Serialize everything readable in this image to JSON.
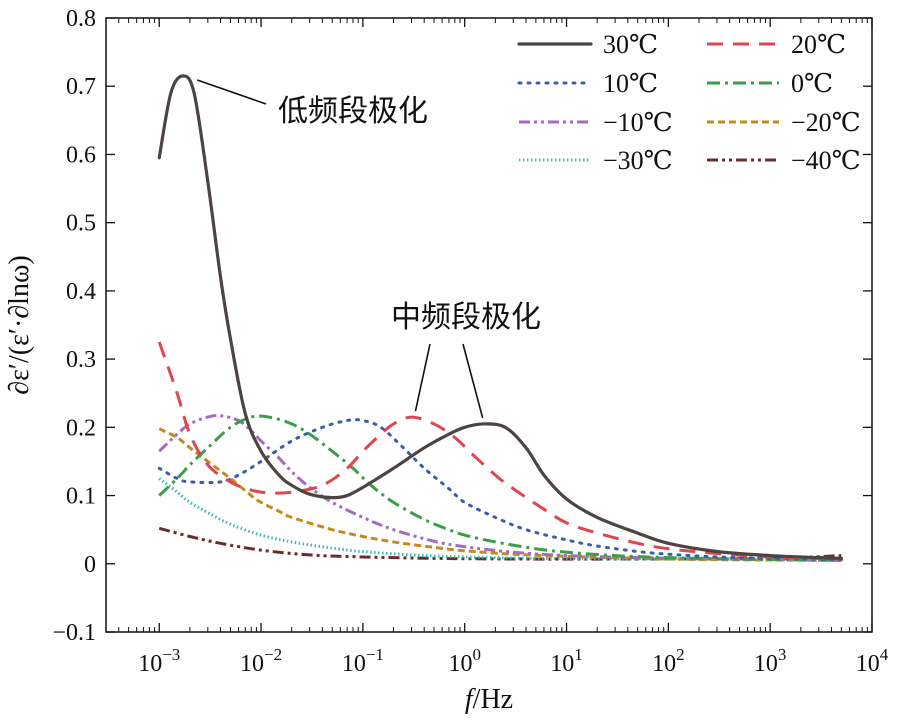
{
  "chart_data": {
    "type": "line",
    "xscale": "log",
    "xlim": [
      0.0003,
      10000
    ],
    "ylim": [
      -0.1,
      0.8
    ],
    "xlabel_italic": "f",
    "xlabel_rest": "/Hz",
    "ylabel": "∂ε′/(ε′·∂lnω)",
    "x_ticks": [
      {
        "value": 0.001,
        "base": "10",
        "exp": "−3"
      },
      {
        "value": 0.01,
        "base": "10",
        "exp": "−2"
      },
      {
        "value": 0.1,
        "base": "10",
        "exp": "−1"
      },
      {
        "value": 1,
        "base": "10",
        "exp": "0"
      },
      {
        "value": 10,
        "base": "10",
        "exp": "1"
      },
      {
        "value": 100,
        "base": "10",
        "exp": "2"
      },
      {
        "value": 1000,
        "base": "10",
        "exp": "3"
      },
      {
        "value": 10000,
        "base": "10",
        "exp": "4"
      }
    ],
    "y_ticks": [
      {
        "value": -0.1,
        "label": "−0.1"
      },
      {
        "value": 0,
        "label": "0"
      },
      {
        "value": 0.1,
        "label": "0.1"
      },
      {
        "value": 0.2,
        "label": "0.2"
      },
      {
        "value": 0.3,
        "label": "0.3"
      },
      {
        "value": 0.4,
        "label": "0.4"
      },
      {
        "value": 0.5,
        "label": "0.5"
      },
      {
        "value": 0.6,
        "label": "0.6"
      },
      {
        "value": 0.7,
        "label": "0.7"
      },
      {
        "value": 0.8,
        "label": "0.8"
      }
    ],
    "legend_position": "top-right",
    "series": [
      {
        "name": "30℃",
        "color": "#4b4441",
        "dash": "solid",
        "points": [
          [
            0.001,
            0.595
          ],
          [
            0.0013,
            0.69
          ],
          [
            0.0017,
            0.715
          ],
          [
            0.0022,
            0.69
          ],
          [
            0.003,
            0.56
          ],
          [
            0.004,
            0.42
          ],
          [
            0.005,
            0.33
          ],
          [
            0.007,
            0.22
          ],
          [
            0.01,
            0.165
          ],
          [
            0.015,
            0.13
          ],
          [
            0.02,
            0.115
          ],
          [
            0.03,
            0.102
          ],
          [
            0.05,
            0.097
          ],
          [
            0.07,
            0.1
          ],
          [
            0.1,
            0.112
          ],
          [
            0.2,
            0.14
          ],
          [
            0.4,
            0.17
          ],
          [
            0.7,
            0.19
          ],
          [
            1,
            0.2
          ],
          [
            1.5,
            0.205
          ],
          [
            2.5,
            0.2
          ],
          [
            4,
            0.17
          ],
          [
            6,
            0.13
          ],
          [
            10,
            0.095
          ],
          [
            20,
            0.068
          ],
          [
            50,
            0.045
          ],
          [
            100,
            0.03
          ],
          [
            300,
            0.018
          ],
          [
            1000,
            0.012
          ],
          [
            3000,
            0.009
          ],
          [
            5000,
            0.008
          ]
        ]
      },
      {
        "name": "20℃",
        "color": "#e0464e",
        "dash": "long",
        "points": [
          [
            0.001,
            0.325
          ],
          [
            0.0015,
            0.25
          ],
          [
            0.002,
            0.19
          ],
          [
            0.003,
            0.145
          ],
          [
            0.005,
            0.12
          ],
          [
            0.008,
            0.108
          ],
          [
            0.012,
            0.104
          ],
          [
            0.02,
            0.105
          ],
          [
            0.04,
            0.115
          ],
          [
            0.07,
            0.14
          ],
          [
            0.1,
            0.165
          ],
          [
            0.15,
            0.19
          ],
          [
            0.2,
            0.205
          ],
          [
            0.3,
            0.215
          ],
          [
            0.5,
            0.205
          ],
          [
            0.8,
            0.185
          ],
          [
            1.2,
            0.16
          ],
          [
            2,
            0.13
          ],
          [
            3,
            0.11
          ],
          [
            6,
            0.08
          ],
          [
            10,
            0.06
          ],
          [
            20,
            0.045
          ],
          [
            50,
            0.03
          ],
          [
            100,
            0.022
          ],
          [
            300,
            0.015
          ],
          [
            1000,
            0.01
          ],
          [
            3000,
            0.008
          ],
          [
            5000,
            0.007
          ]
        ]
      },
      {
        "name": "10℃",
        "color": "#3a5ea8",
        "dash": "dot",
        "points": [
          [
            0.001,
            0.14
          ],
          [
            0.0015,
            0.125
          ],
          [
            0.002,
            0.12
          ],
          [
            0.004,
            0.12
          ],
          [
            0.006,
            0.13
          ],
          [
            0.01,
            0.15
          ],
          [
            0.02,
            0.18
          ],
          [
            0.04,
            0.2
          ],
          [
            0.07,
            0.21
          ],
          [
            0.1,
            0.21
          ],
          [
            0.15,
            0.2
          ],
          [
            0.25,
            0.17
          ],
          [
            0.4,
            0.14
          ],
          [
            0.7,
            0.11
          ],
          [
            1,
            0.09
          ],
          [
            2,
            0.068
          ],
          [
            4,
            0.05
          ],
          [
            10,
            0.035
          ],
          [
            20,
            0.026
          ],
          [
            50,
            0.018
          ],
          [
            100,
            0.014
          ],
          [
            300,
            0.01
          ],
          [
            1000,
            0.008
          ],
          [
            5000,
            0.006
          ]
        ]
      },
      {
        "name": "0℃",
        "color": "#3a9e48",
        "dash": "dashdot",
        "points": [
          [
            0.001,
            0.1
          ],
          [
            0.0015,
            0.125
          ],
          [
            0.002,
            0.145
          ],
          [
            0.003,
            0.17
          ],
          [
            0.005,
            0.2
          ],
          [
            0.008,
            0.215
          ],
          [
            0.012,
            0.215
          ],
          [
            0.02,
            0.205
          ],
          [
            0.03,
            0.19
          ],
          [
            0.05,
            0.165
          ],
          [
            0.08,
            0.14
          ],
          [
            0.12,
            0.115
          ],
          [
            0.2,
            0.09
          ],
          [
            0.4,
            0.065
          ],
          [
            0.7,
            0.05
          ],
          [
            1,
            0.042
          ],
          [
            2,
            0.032
          ],
          [
            5,
            0.022
          ],
          [
            10,
            0.017
          ],
          [
            30,
            0.012
          ],
          [
            100,
            0.009
          ],
          [
            500,
            0.007
          ],
          [
            5000,
            0.005
          ]
        ]
      },
      {
        "name": "−10℃",
        "color": "#a56bbf",
        "dash": "dashdotdot",
        "points": [
          [
            0.001,
            0.165
          ],
          [
            0.0015,
            0.19
          ],
          [
            0.002,
            0.205
          ],
          [
            0.003,
            0.215
          ],
          [
            0.004,
            0.217
          ],
          [
            0.006,
            0.21
          ],
          [
            0.008,
            0.195
          ],
          [
            0.01,
            0.18
          ],
          [
            0.015,
            0.155
          ],
          [
            0.02,
            0.135
          ],
          [
            0.03,
            0.112
          ],
          [
            0.05,
            0.09
          ],
          [
            0.1,
            0.068
          ],
          [
            0.2,
            0.05
          ],
          [
            0.5,
            0.033
          ],
          [
            1,
            0.025
          ],
          [
            3,
            0.017
          ],
          [
            10,
            0.012
          ],
          [
            50,
            0.009
          ],
          [
            300,
            0.007
          ],
          [
            5000,
            0.005
          ]
        ]
      },
      {
        "name": "−20℃",
        "color": "#c48a1e",
        "dash": "short",
        "points": [
          [
            0.001,
            0.198
          ],
          [
            0.0015,
            0.185
          ],
          [
            0.002,
            0.17
          ],
          [
            0.003,
            0.15
          ],
          [
            0.005,
            0.125
          ],
          [
            0.008,
            0.1
          ],
          [
            0.01,
            0.09
          ],
          [
            0.015,
            0.077
          ],
          [
            0.02,
            0.068
          ],
          [
            0.05,
            0.05
          ],
          [
            0.1,
            0.04
          ],
          [
            0.2,
            0.032
          ],
          [
            0.5,
            0.024
          ],
          [
            1,
            0.019
          ],
          [
            3,
            0.014
          ],
          [
            10,
            0.011
          ],
          [
            50,
            0.008
          ],
          [
            300,
            0.006
          ],
          [
            5000,
            0.005
          ]
        ]
      },
      {
        "name": "−30℃",
        "color": "#3bb8b0",
        "dash": "fine",
        "points": [
          [
            0.001,
            0.125
          ],
          [
            0.0015,
            0.105
          ],
          [
            0.002,
            0.09
          ],
          [
            0.003,
            0.075
          ],
          [
            0.005,
            0.058
          ],
          [
            0.01,
            0.042
          ],
          [
            0.02,
            0.032
          ],
          [
            0.05,
            0.023
          ],
          [
            0.1,
            0.018
          ],
          [
            0.3,
            0.013
          ],
          [
            1,
            0.01
          ],
          [
            5,
            0.008
          ],
          [
            50,
            0.007
          ],
          [
            5000,
            0.006
          ]
        ]
      },
      {
        "name": "−40℃",
        "color": "#6b2c2c",
        "dash": "dashdotdot",
        "points": [
          [
            0.001,
            0.052
          ],
          [
            0.002,
            0.04
          ],
          [
            0.004,
            0.03
          ],
          [
            0.01,
            0.02
          ],
          [
            0.03,
            0.013
          ],
          [
            0.1,
            0.01
          ],
          [
            0.5,
            0.008
          ],
          [
            3,
            0.007
          ],
          [
            50,
            0.007
          ],
          [
            1000,
            0.008
          ],
          [
            5000,
            0.012
          ]
        ]
      }
    ],
    "annotations": [
      {
        "text": "低频段极化",
        "points_to": [
          [
            0.0018,
            0.715
          ]
        ]
      },
      {
        "text": "中频段极化",
        "points_to": [
          [
            0.3,
            0.215
          ],
          [
            1.5,
            0.205
          ]
        ]
      }
    ]
  }
}
